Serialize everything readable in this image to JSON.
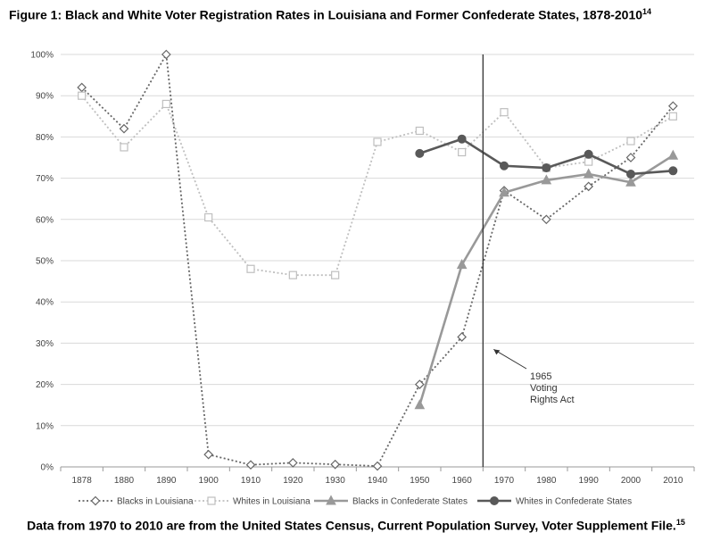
{
  "title": "Figure 1: Black and White Voter Registration Rates in Louisiana and Former Confederate States, 1878-2010",
  "title_footnote": "14",
  "footer": "Data from 1970 to 2010 are from the United States Census, Current Population Survey, Voter Supplement File.",
  "footer_footnote": "15",
  "chart_data": {
    "type": "line",
    "categories": [
      "1878",
      "1880",
      "1890",
      "1900",
      "1910",
      "1920",
      "1930",
      "1940",
      "1950",
      "1960",
      "1970",
      "1980",
      "1990",
      "2000",
      "2010"
    ],
    "ylim": [
      0,
      100
    ],
    "yticks": [
      "0%",
      "10%",
      "20%",
      "30%",
      "40%",
      "50%",
      "60%",
      "70%",
      "80%",
      "90%",
      "100%"
    ],
    "grid": true,
    "legend_position": "bottom",
    "series": [
      {
        "name": "Blacks in Louisiana",
        "color": "#666666",
        "marker": "diamond",
        "line": "dotted",
        "values": [
          92,
          82,
          100,
          3,
          0.5,
          1,
          0.6,
          0.2,
          20,
          31.5,
          67,
          60,
          68,
          75,
          87.5
        ]
      },
      {
        "name": "Whites in Louisiana",
        "color": "#bfbfbf",
        "marker": "square",
        "line": "dotted",
        "values": [
          90,
          77.5,
          88,
          60.5,
          48,
          46.5,
          46.5,
          78.8,
          81.5,
          76.3,
          86,
          72.5,
          74,
          79,
          85
        ]
      },
      {
        "name": "Blacks in Confederate States",
        "color": "#999999",
        "marker": "triangle",
        "line": "solid",
        "values": [
          null,
          null,
          null,
          null,
          null,
          null,
          null,
          null,
          15,
          49,
          66.5,
          69.5,
          71,
          69,
          75.5
        ]
      },
      {
        "name": "Whites in Confederate States",
        "color": "#595959",
        "marker": "circle",
        "line": "solid",
        "values": [
          null,
          null,
          null,
          null,
          null,
          null,
          null,
          null,
          76,
          79.5,
          73,
          72.5,
          75.8,
          71,
          71.8
        ]
      }
    ],
    "annotation": {
      "lines": [
        "1965",
        "Voting",
        "Rights Act"
      ],
      "x_value": 1965
    }
  }
}
